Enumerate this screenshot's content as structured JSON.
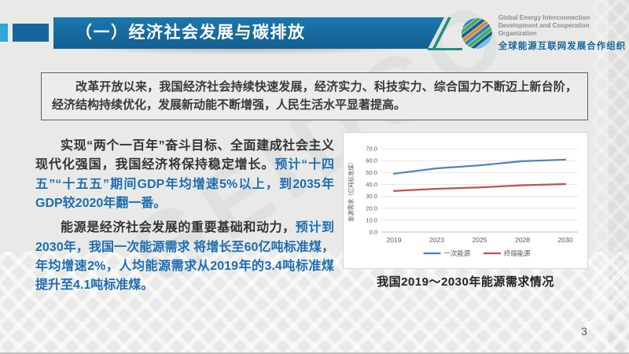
{
  "slide": {
    "header": {
      "title": "（一）经济社会发展与碳排放"
    },
    "logo": {
      "org_en_line1": "Global Energy Interconnection",
      "org_en_line2": "Development and Cooperation Organization",
      "org_zh": "全球能源互联网发展合作组织"
    },
    "intro_box": {
      "text": "改革开放以来，我国经济社会持续快速发展，经济实力、科技实力、综合国力不断迈上新台阶，经济结构持续优化，发展新动能不断增强，人民生活水平显著提高。"
    },
    "paragraphs": [
      {
        "black": "实现“两个一百年”奋斗目标、全面建成社会主义现代化强国，我国经济将保持稳定增长。",
        "blue": "预计“十四五”“十五五”期间GDP年均增速5%以上，到2035年GDP较2020年翻一番。"
      },
      {
        "black": "能源是经济社会发展的重要基础和动力，",
        "blue": "预计到2030年，我国一次能源需求 将增长至60亿吨标准煤，年均增速2%，人均能源需求从2019年的3.4吨标准煤提升至4.1吨标准煤。"
      }
    ],
    "chart_caption": "我国2019～2030年能源需求情况",
    "page_number": "3",
    "watermark": "GEIDCO"
  },
  "colors": {
    "title_bar_blue": "#15689c",
    "accent_light_blue": "#2fa7d9",
    "teal_accent": "#1e8f85",
    "highlight_text_blue": "#1e6db3",
    "series_primary_blue": "#4f81bd",
    "series_terminal_red": "#c0504d"
  },
  "chart_data": {
    "type": "line",
    "title": "我国2019～2030年能源需求情况",
    "categories": [
      "2019",
      "2023",
      "2025",
      "2028",
      "2030"
    ],
    "series": [
      {
        "name": "一次能源",
        "color": "#4f81bd",
        "values": [
          49.0,
          53.5,
          56.0,
          59.5,
          60.8
        ]
      },
      {
        "name": "终端能源",
        "color": "#c0504d",
        "values": [
          34.5,
          36.3,
          37.5,
          39.3,
          40.3
        ]
      }
    ],
    "xlabel": "",
    "ylabel": "能源需求（亿吨标准煤）",
    "ylim": [
      0,
      70
    ],
    "ytick_step": 10,
    "grid": true,
    "legend_position": "bottom"
  }
}
